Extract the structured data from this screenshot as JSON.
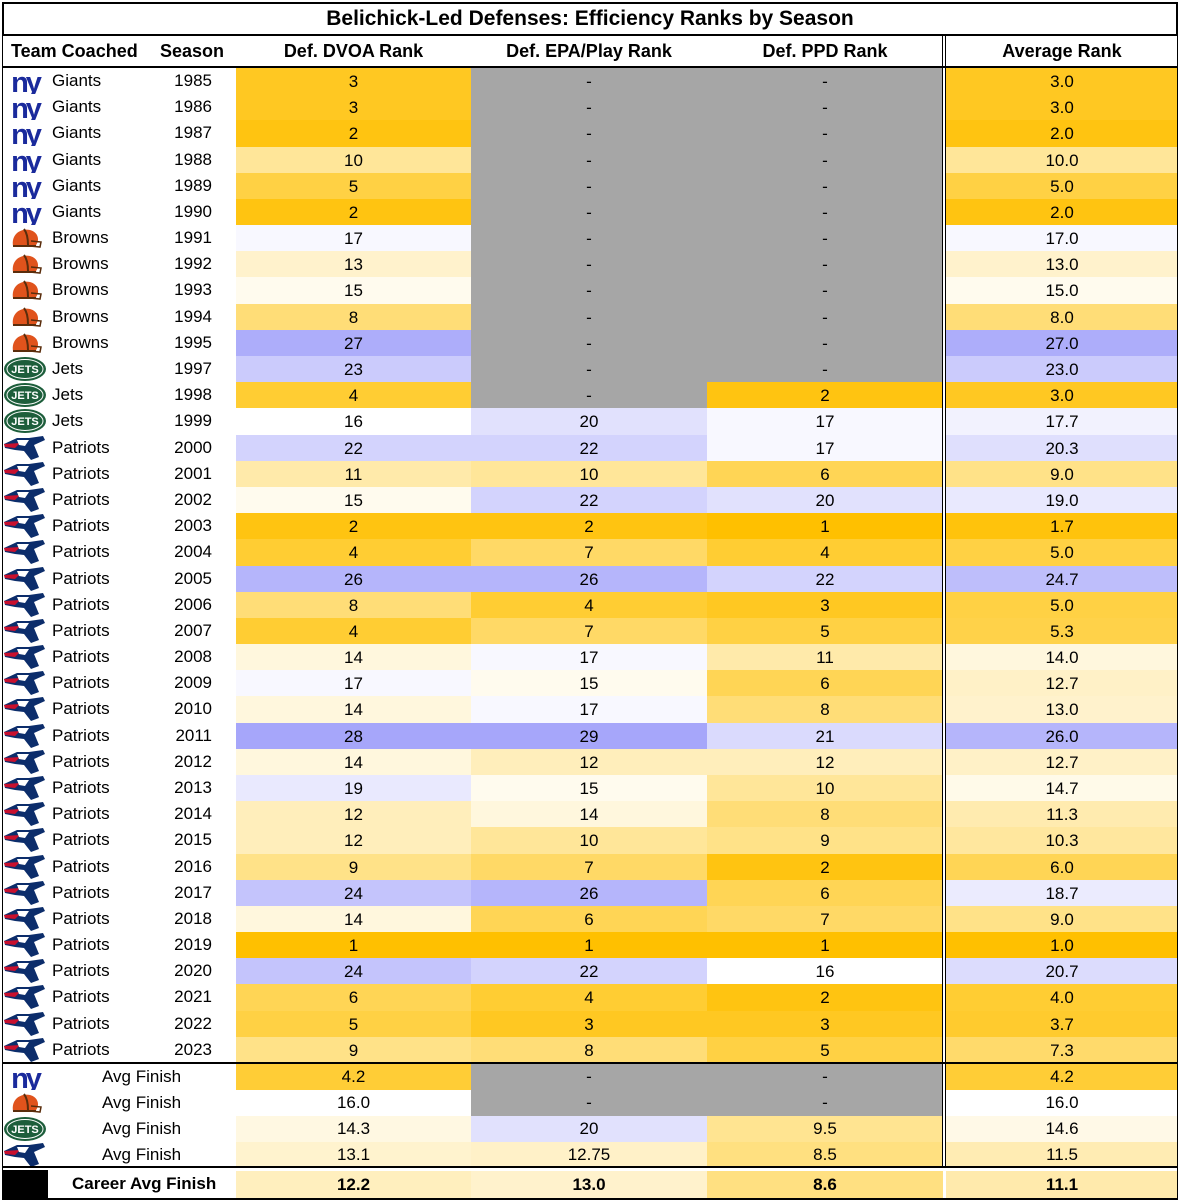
{
  "title": "Belichick-Led Defenses: Efficiency Ranks by Season",
  "columns": [
    "Team Coached",
    "Season",
    "Def. DVOA Rank",
    "Def. EPA/Play Rank",
    "Def. PPD Rank",
    "Average Rank"
  ],
  "scale_colors": {
    "best": "#ffc000",
    "middle": "#ffffff",
    "worst": "#a6a6fa",
    "missing": "#a6a6a6"
  },
  "chart_data": {
    "type": "table",
    "title": "Belichick-Led Defenses: Efficiency Ranks by Season",
    "rows": [
      {
        "team": "Giants",
        "season": "1985",
        "dvoa": "3",
        "epa": "-",
        "ppd": "-",
        "avg": "3.0"
      },
      {
        "team": "Giants",
        "season": "1986",
        "dvoa": "3",
        "epa": "-",
        "ppd": "-",
        "avg": "3.0"
      },
      {
        "team": "Giants",
        "season": "1987",
        "dvoa": "2",
        "epa": "-",
        "ppd": "-",
        "avg": "2.0"
      },
      {
        "team": "Giants",
        "season": "1988",
        "dvoa": "10",
        "epa": "-",
        "ppd": "-",
        "avg": "10.0"
      },
      {
        "team": "Giants",
        "season": "1989",
        "dvoa": "5",
        "epa": "-",
        "ppd": "-",
        "avg": "5.0"
      },
      {
        "team": "Giants",
        "season": "1990",
        "dvoa": "2",
        "epa": "-",
        "ppd": "-",
        "avg": "2.0"
      },
      {
        "team": "Browns",
        "season": "1991",
        "dvoa": "17",
        "epa": "-",
        "ppd": "-",
        "avg": "17.0"
      },
      {
        "team": "Browns",
        "season": "1992",
        "dvoa": "13",
        "epa": "-",
        "ppd": "-",
        "avg": "13.0"
      },
      {
        "team": "Browns",
        "season": "1993",
        "dvoa": "15",
        "epa": "-",
        "ppd": "-",
        "avg": "15.0"
      },
      {
        "team": "Browns",
        "season": "1994",
        "dvoa": "8",
        "epa": "-",
        "ppd": "-",
        "avg": "8.0"
      },
      {
        "team": "Browns",
        "season": "1995",
        "dvoa": "27",
        "epa": "-",
        "ppd": "-",
        "avg": "27.0"
      },
      {
        "team": "Jets",
        "season": "1997",
        "dvoa": "23",
        "epa": "-",
        "ppd": "-",
        "avg": "23.0"
      },
      {
        "team": "Jets",
        "season": "1998",
        "dvoa": "4",
        "epa": "-",
        "ppd": "2",
        "avg": "3.0"
      },
      {
        "team": "Jets",
        "season": "1999",
        "dvoa": "16",
        "epa": "20",
        "ppd": "17",
        "avg": "17.7"
      },
      {
        "team": "Patriots",
        "season": "2000",
        "dvoa": "22",
        "epa": "22",
        "ppd": "17",
        "avg": "20.3"
      },
      {
        "team": "Patriots",
        "season": "2001",
        "dvoa": "11",
        "epa": "10",
        "ppd": "6",
        "avg": "9.0"
      },
      {
        "team": "Patriots",
        "season": "2002",
        "dvoa": "15",
        "epa": "22",
        "ppd": "20",
        "avg": "19.0"
      },
      {
        "team": "Patriots",
        "season": "2003",
        "dvoa": "2",
        "epa": "2",
        "ppd": "1",
        "avg": "1.7"
      },
      {
        "team": "Patriots",
        "season": "2004",
        "dvoa": "4",
        "epa": "7",
        "ppd": "4",
        "avg": "5.0"
      },
      {
        "team": "Patriots",
        "season": "2005",
        "dvoa": "26",
        "epa": "26",
        "ppd": "22",
        "avg": "24.7"
      },
      {
        "team": "Patriots",
        "season": "2006",
        "dvoa": "8",
        "epa": "4",
        "ppd": "3",
        "avg": "5.0"
      },
      {
        "team": "Patriots",
        "season": "2007",
        "dvoa": "4",
        "epa": "7",
        "ppd": "5",
        "avg": "5.3"
      },
      {
        "team": "Patriots",
        "season": "2008",
        "dvoa": "14",
        "epa": "17",
        "ppd": "11",
        "avg": "14.0"
      },
      {
        "team": "Patriots",
        "season": "2009",
        "dvoa": "17",
        "epa": "15",
        "ppd": "6",
        "avg": "12.7"
      },
      {
        "team": "Patriots",
        "season": "2010",
        "dvoa": "14",
        "epa": "17",
        "ppd": "8",
        "avg": "13.0"
      },
      {
        "team": "Patriots",
        "season": "2011",
        "dvoa": "28",
        "epa": "29",
        "ppd": "21",
        "avg": "26.0"
      },
      {
        "team": "Patriots",
        "season": "2012",
        "dvoa": "14",
        "epa": "12",
        "ppd": "12",
        "avg": "12.7"
      },
      {
        "team": "Patriots",
        "season": "2013",
        "dvoa": "19",
        "epa": "15",
        "ppd": "10",
        "avg": "14.7"
      },
      {
        "team": "Patriots",
        "season": "2014",
        "dvoa": "12",
        "epa": "14",
        "ppd": "8",
        "avg": "11.3"
      },
      {
        "team": "Patriots",
        "season": "2015",
        "dvoa": "12",
        "epa": "10",
        "ppd": "9",
        "avg": "10.3"
      },
      {
        "team": "Patriots",
        "season": "2016",
        "dvoa": "9",
        "epa": "7",
        "ppd": "2",
        "avg": "6.0"
      },
      {
        "team": "Patriots",
        "season": "2017",
        "dvoa": "24",
        "epa": "26",
        "ppd": "6",
        "avg": "18.7"
      },
      {
        "team": "Patriots",
        "season": "2018",
        "dvoa": "14",
        "epa": "6",
        "ppd": "7",
        "avg": "9.0"
      },
      {
        "team": "Patriots",
        "season": "2019",
        "dvoa": "1",
        "epa": "1",
        "ppd": "1",
        "avg": "1.0"
      },
      {
        "team": "Patriots",
        "season": "2020",
        "dvoa": "24",
        "epa": "22",
        "ppd": "16",
        "avg": "20.7"
      },
      {
        "team": "Patriots",
        "season": "2021",
        "dvoa": "6",
        "epa": "4",
        "ppd": "2",
        "avg": "4.0"
      },
      {
        "team": "Patriots",
        "season": "2022",
        "dvoa": "5",
        "epa": "3",
        "ppd": "3",
        "avg": "3.7"
      },
      {
        "team": "Patriots",
        "season": "2023",
        "dvoa": "9",
        "epa": "8",
        "ppd": "5",
        "avg": "7.3"
      }
    ],
    "summary": [
      {
        "team": "Giants",
        "label": "Avg Finish",
        "dvoa": "4.2",
        "epa": "-",
        "ppd": "-",
        "avg": "4.2"
      },
      {
        "team": "Browns",
        "label": "Avg Finish",
        "dvoa": "16.0",
        "epa": "-",
        "ppd": "-",
        "avg": "16.0"
      },
      {
        "team": "Jets",
        "label": "Avg Finish",
        "dvoa": "14.3",
        "epa": "20",
        "ppd": "9.5",
        "avg": "14.6"
      },
      {
        "team": "Patriots",
        "label": "Avg Finish",
        "dvoa": "13.1",
        "epa": "12.75",
        "ppd": "8.5",
        "avg": "11.5"
      }
    ],
    "career": {
      "label": "Career Avg Finish",
      "dvoa": "12.2",
      "epa": "13.0",
      "ppd": "8.6",
      "avg": "11.1"
    }
  }
}
